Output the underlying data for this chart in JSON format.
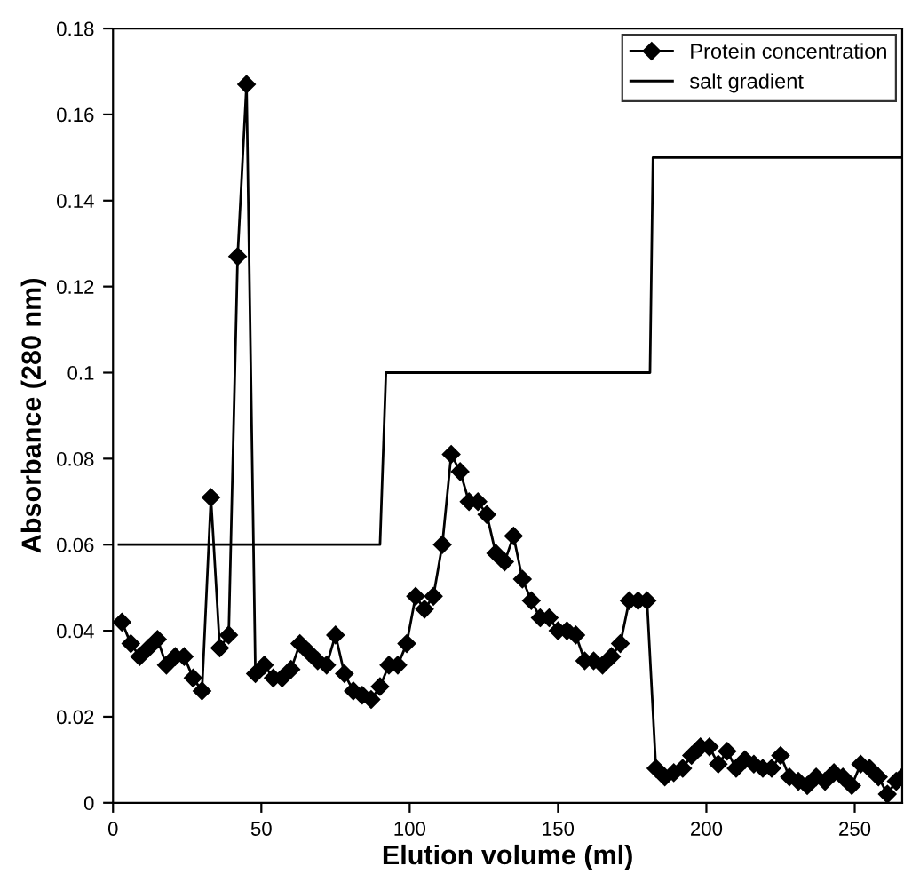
{
  "chart_data": {
    "type": "line",
    "xlabel": "Elution volume (ml)",
    "ylabel": "Absorbance (280 nm)",
    "series": [
      {
        "name": "Protein concentration",
        "color": "#000000",
        "marker": "diamond",
        "line_style": "solid",
        "x": [
          3,
          6,
          9,
          12,
          15,
          18,
          21,
          24,
          27,
          30,
          33,
          36,
          39,
          42,
          45,
          48,
          51,
          54,
          57,
          60,
          63,
          66,
          69,
          72,
          75,
          78,
          81,
          84,
          87,
          90,
          93,
          96,
          99,
          102,
          105,
          108,
          111,
          114,
          117,
          120,
          123,
          126,
          129,
          132,
          135,
          138,
          141,
          144,
          147,
          150,
          153,
          156,
          159,
          162,
          165,
          168,
          171,
          174,
          177,
          180,
          183,
          186,
          189,
          192,
          195,
          198,
          201,
          204,
          207,
          210,
          213,
          216,
          219,
          222,
          225,
          228,
          231,
          234,
          237,
          240,
          243,
          246,
          249,
          252,
          255,
          258,
          261,
          264,
          266
        ],
        "values": [
          0.042,
          0.037,
          0.034,
          0.036,
          0.038,
          0.032,
          0.034,
          0.034,
          0.029,
          0.026,
          0.071,
          0.036,
          0.039,
          0.127,
          0.167,
          0.03,
          0.032,
          0.029,
          0.029,
          0.031,
          0.037,
          0.035,
          0.033,
          0.032,
          0.039,
          0.03,
          0.026,
          0.025,
          0.024,
          0.027,
          0.032,
          0.032,
          0.037,
          0.048,
          0.045,
          0.048,
          0.06,
          0.081,
          0.077,
          0.07,
          0.07,
          0.067,
          0.058,
          0.056,
          0.062,
          0.052,
          0.047,
          0.043,
          0.043,
          0.04,
          0.04,
          0.039,
          0.033,
          0.033,
          0.032,
          0.034,
          0.037,
          0.047,
          0.047,
          0.047,
          0.008,
          0.006,
          0.007,
          0.008,
          0.011,
          0.013,
          0.013,
          0.009,
          0.012,
          0.008,
          0.01,
          0.009,
          0.008,
          0.008,
          0.011,
          0.006,
          0.005,
          0.004,
          0.006,
          0.005,
          0.007,
          0.006,
          0.004,
          0.009,
          0.008,
          0.006,
          0.002,
          0.005,
          0.006
        ]
      },
      {
        "name": "salt gradient",
        "color": "#000000",
        "marker": "none",
        "line_style": "solid",
        "x": [
          2,
          90,
          92,
          181,
          182,
          266
        ],
        "values": [
          0.06,
          0.06,
          0.1,
          0.1,
          0.15,
          0.15
        ]
      }
    ],
    "xlim": [
      0,
      266
    ],
    "xticks": [
      0,
      50,
      100,
      150,
      200,
      250
    ],
    "ylim": [
      0,
      0.18
    ],
    "yticks": [
      0,
      0.02,
      0.04,
      0.06,
      0.08,
      0.1,
      0.12,
      0.14,
      0.16,
      0.18
    ],
    "grid": false,
    "legend": "top right"
  }
}
